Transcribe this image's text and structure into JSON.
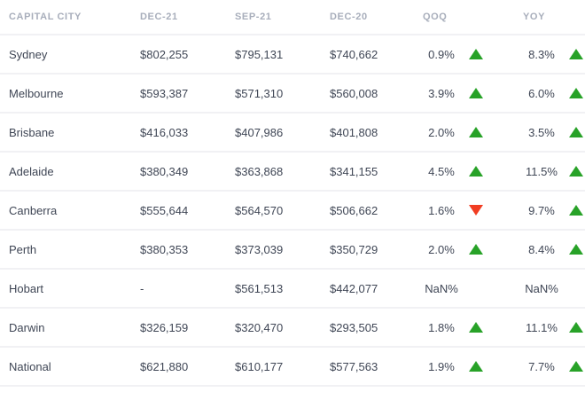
{
  "colors": {
    "trend_up": "#28a228",
    "trend_down": "#f13d22",
    "header_text": "#a8aebb",
    "body_text": "#3f4655",
    "divider": "#f1f1f4"
  },
  "icons": {
    "up": "triangle-up-icon",
    "down": "triangle-down-icon"
  },
  "table": {
    "columns": [
      "CAPITAL CITY",
      "DEC-21",
      "SEP-21",
      "DEC-20",
      "QOQ",
      "YOY"
    ],
    "rows": [
      {
        "city": "Sydney",
        "dec21": "$802,255",
        "sep21": "$795,131",
        "dec20": "$740,662",
        "qoq": "0.9%",
        "qoq_dir": "up",
        "yoy": "8.3%",
        "yoy_dir": "up"
      },
      {
        "city": "Melbourne",
        "dec21": "$593,387",
        "sep21": "$571,310",
        "dec20": "$560,008",
        "qoq": "3.9%",
        "qoq_dir": "up",
        "yoy": "6.0%",
        "yoy_dir": "up"
      },
      {
        "city": "Brisbane",
        "dec21": "$416,033",
        "sep21": "$407,986",
        "dec20": "$401,808",
        "qoq": "2.0%",
        "qoq_dir": "up",
        "yoy": "3.5%",
        "yoy_dir": "up"
      },
      {
        "city": "Adelaide",
        "dec21": "$380,349",
        "sep21": "$363,868",
        "dec20": "$341,155",
        "qoq": "4.5%",
        "qoq_dir": "up",
        "yoy": "11.5%",
        "yoy_dir": "up"
      },
      {
        "city": "Canberra",
        "dec21": "$555,644",
        "sep21": "$564,570",
        "dec20": "$506,662",
        "qoq": "1.6%",
        "qoq_dir": "down",
        "yoy": "9.7%",
        "yoy_dir": "up"
      },
      {
        "city": "Perth",
        "dec21": "$380,353",
        "sep21": "$373,039",
        "dec20": "$350,729",
        "qoq": "2.0%",
        "qoq_dir": "up",
        "yoy": "8.4%",
        "yoy_dir": "up"
      },
      {
        "city": "Hobart",
        "dec21": "-",
        "sep21": "$561,513",
        "dec20": "$442,077",
        "qoq": "NaN%",
        "qoq_dir": "none",
        "yoy": "NaN%",
        "yoy_dir": "none"
      },
      {
        "city": "Darwin",
        "dec21": "$326,159",
        "sep21": "$320,470",
        "dec20": "$293,505",
        "qoq": "1.8%",
        "qoq_dir": "up",
        "yoy": "11.1%",
        "yoy_dir": "up"
      },
      {
        "city": "National",
        "dec21": "$621,880",
        "sep21": "$610,177",
        "dec20": "$577,563",
        "qoq": "1.9%",
        "qoq_dir": "up",
        "yoy": "7.7%",
        "yoy_dir": "up"
      }
    ]
  }
}
